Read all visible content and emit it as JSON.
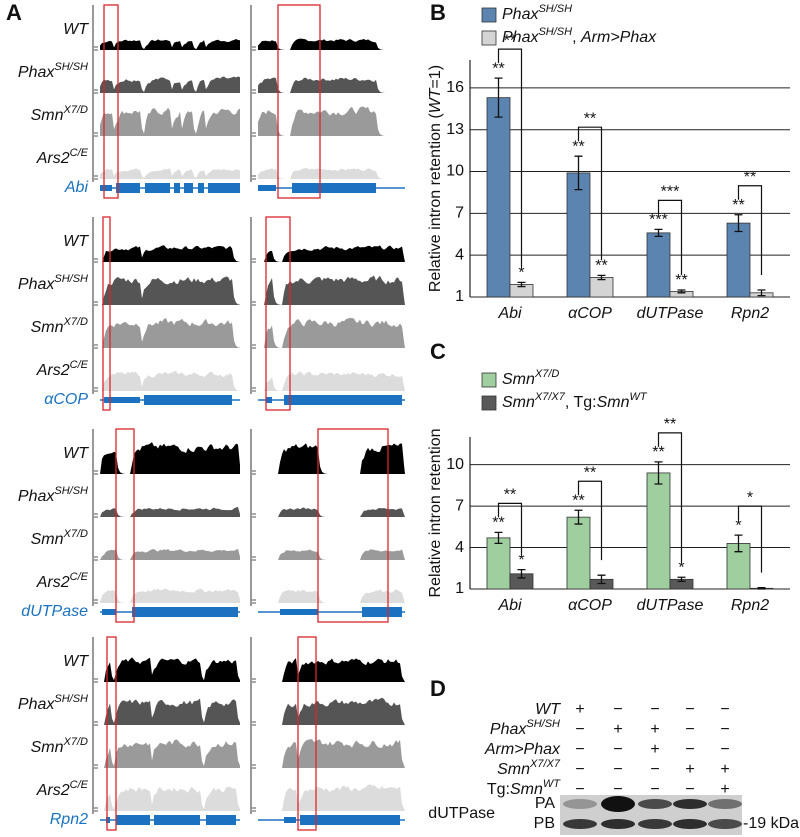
{
  "panel_labels": [
    "A",
    "B",
    "C",
    "D"
  ],
  "panel_a": {
    "tracks": [
      [
        [
          "WT",
          "i"
        ]
      ],
      [
        [
          "Phax",
          "i"
        ],
        [
          "SH/SH",
          "isup"
        ]
      ],
      [
        [
          "Smn",
          "i"
        ],
        [
          "X7/D",
          "isup"
        ]
      ],
      [
        [
          "Ars2",
          "i"
        ],
        [
          "C/E",
          "isup"
        ]
      ]
    ],
    "genes": [
      "Abi",
      "αCOP",
      "dUTPase",
      "Rpn2"
    ]
  },
  "chart_data": [
    {
      "type": "bar",
      "y_label": [
        [
          "Relative intron retention (",
          "n"
        ],
        [
          "WT",
          "i"
        ],
        [
          "=1)",
          "n"
        ]
      ],
      "categories": [
        "Abi",
        "αCOP",
        "dUTPase",
        "Rpn2"
      ],
      "series": [
        {
          "name": [
            [
              "Phax",
              "i"
            ],
            [
              "SH/SH",
              "isup"
            ]
          ],
          "color": "#5b84b1",
          "values": [
            15.3,
            9.9,
            5.6,
            6.3
          ],
          "errors": [
            1.4,
            1.2,
            0.25,
            0.6
          ],
          "stars": [
            "**",
            "**",
            "***",
            "**"
          ]
        },
        {
          "name": [
            [
              "Phax",
              "i"
            ],
            [
              "SH/SH",
              "isup"
            ],
            [
              ", ",
              "n"
            ],
            [
              "Arm>Phax",
              "i"
            ]
          ],
          "color": "#d4d4d4",
          "values": [
            1.9,
            2.4,
            1.4,
            1.3
          ],
          "errors": [
            0.15,
            0.15,
            0.1,
            0.2
          ],
          "stars": [
            "*",
            "**",
            "**",
            null
          ]
        }
      ],
      "brackets": [
        "**",
        "**",
        "***",
        "**"
      ],
      "ylim": [
        1,
        18
      ],
      "yticks": [
        1,
        4,
        7,
        10,
        13,
        16
      ],
      "grid": true
    },
    {
      "type": "bar",
      "y_label": [
        [
          "Relative intron retention",
          "n"
        ]
      ],
      "categories": [
        "Abi",
        "αCOP",
        "dUTPase",
        "Rpn2"
      ],
      "series": [
        {
          "name": [
            [
              "Smn",
              "i"
            ],
            [
              "X7/D",
              "isup"
            ]
          ],
          "color": "#9fcf9f",
          "values": [
            4.7,
            6.2,
            9.4,
            4.3
          ],
          "errors": [
            0.4,
            0.5,
            0.8,
            0.6
          ],
          "stars": [
            "**",
            "**",
            "**",
            "*"
          ]
        },
        {
          "name": [
            [
              "Smn",
              "i"
            ],
            [
              "X7/X7",
              "isup"
            ],
            [
              ", Tg:",
              "n"
            ],
            [
              "Smn",
              "i"
            ],
            [
              "WT",
              "isup"
            ]
          ],
          "color": "#595959",
          "values": [
            2.1,
            1.7,
            1.7,
            1.05
          ],
          "errors": [
            0.3,
            0.3,
            0.15,
            0.05
          ],
          "stars": [
            "*",
            null,
            "*",
            null
          ]
        }
      ],
      "brackets": [
        "**",
        "**",
        "**",
        "*"
      ],
      "ylim": [
        1,
        12
      ],
      "yticks": [
        1,
        4,
        7,
        10
      ],
      "grid": true
    }
  ],
  "panel_d": {
    "rows": [
      {
        "label": [
          [
            "WT",
            "i"
          ]
        ],
        "signs": [
          "+",
          "−",
          "−",
          "−",
          "−"
        ]
      },
      {
        "label": [
          [
            "Phax",
            "i"
          ],
          [
            "SH/SH",
            "isup"
          ]
        ],
        "signs": [
          "−",
          "+",
          "+",
          "−",
          "−"
        ]
      },
      {
        "label": [
          [
            "Arm>Phax",
            "i"
          ]
        ],
        "signs": [
          "−",
          "−",
          "+",
          "−",
          "−"
        ]
      },
      {
        "label": [
          [
            "Smn",
            "i"
          ],
          [
            "X7/X7",
            "isup"
          ]
        ],
        "signs": [
          "−",
          "−",
          "−",
          "+",
          "+"
        ]
      },
      {
        "label": [
          [
            "Tg:",
            "n"
          ],
          [
            "Smn",
            "i"
          ],
          [
            "WT",
            "isup"
          ]
        ],
        "signs": [
          "−",
          "−",
          "−",
          "−",
          "+"
        ]
      }
    ],
    "protein": "dUTPase",
    "bands": [
      "PA",
      "PB"
    ],
    "marker": "-19 kDa"
  }
}
